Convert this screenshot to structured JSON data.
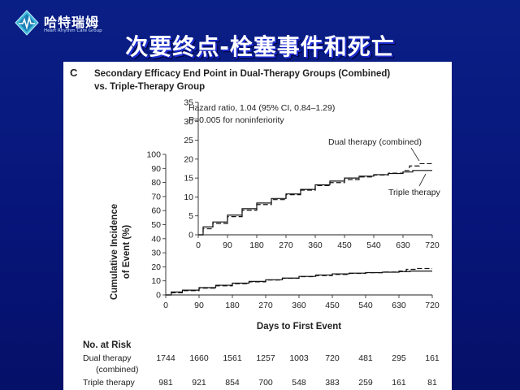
{
  "logo": {
    "name_cn": "哈特瑞姆",
    "name_en": "Heart Rhythm Care Group"
  },
  "slide": {
    "title": "次要终点-栓塞事件和死亡"
  },
  "chart_data": {
    "type": "line",
    "panel_label": "C",
    "title_line1": "Secondary Efficacy End Point in Dual-Therapy Groups (Combined)",
    "title_line2": "vs. Triple-Therapy Group",
    "xlabel": "Days to First Event",
    "ylabel_line1": "Cumulative Incidence",
    "ylabel_line2": "of Event (%)",
    "xlim": [
      0,
      720
    ],
    "ylim": [
      0,
      100
    ],
    "x_ticks": [
      0,
      90,
      180,
      270,
      360,
      450,
      540,
      630,
      720
    ],
    "y_ticks": [
      0,
      10,
      20,
      30,
      40,
      50,
      60,
      70,
      80,
      90,
      100
    ],
    "inset": {
      "xlim": [
        0,
        720
      ],
      "ylim": [
        0,
        35
      ],
      "x_ticks": [
        0,
        90,
        180,
        270,
        360,
        450,
        540,
        630,
        720
      ],
      "y_ticks": [
        0,
        5,
        10,
        15,
        20,
        25,
        30,
        35
      ],
      "annotation_line1": "Hazard ratio, 1.04 (95% CI, 0.84–1.29)",
      "annotation_line2": "P=0.005 for noninferiority"
    },
    "series": [
      {
        "name": "Dual therapy (combined)",
        "style": "dashed",
        "x": [
          0,
          15,
          45,
          90,
          135,
          180,
          225,
          270,
          315,
          360,
          405,
          450,
          495,
          540,
          585,
          630,
          650,
          680,
          720
        ],
        "y": [
          0,
          1.6,
          3.0,
          4.8,
          6.5,
          8.0,
          9.3,
          10.6,
          11.8,
          13.0,
          13.8,
          14.6,
          15.3,
          15.8,
          16.3,
          17.0,
          18.2,
          18.8,
          18.8
        ]
      },
      {
        "name": "Triple therapy",
        "style": "solid",
        "x": [
          0,
          15,
          45,
          90,
          135,
          180,
          225,
          270,
          315,
          360,
          405,
          450,
          495,
          540,
          585,
          630,
          660,
          720
        ],
        "y": [
          0,
          2.1,
          3.4,
          5.2,
          6.9,
          8.4,
          9.6,
          10.8,
          12.0,
          13.2,
          14.2,
          15.0,
          15.5,
          15.9,
          16.2,
          16.6,
          17.0,
          17.0
        ]
      }
    ],
    "risk_table": {
      "header": "No. at Risk",
      "rows": [
        {
          "label": "Dual therapy",
          "label_line2": "(combined)",
          "values": [
            1744,
            1660,
            1561,
            1257,
            1003,
            720,
            481,
            295,
            161
          ]
        },
        {
          "label": "Triple therapy",
          "label_line2": "",
          "values": [
            981,
            921,
            854,
            700,
            548,
            383,
            259,
            161,
            81
          ]
        }
      ]
    }
  }
}
